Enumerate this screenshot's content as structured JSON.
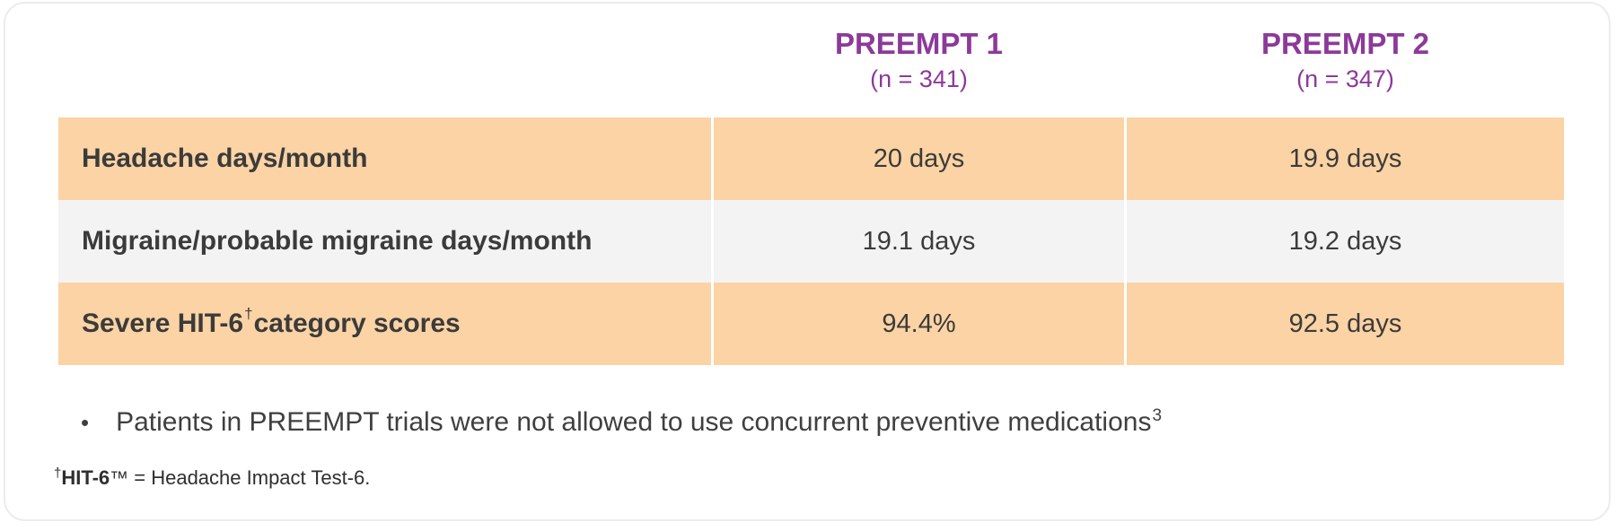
{
  "colors": {
    "accent_purple": "#8c3a99",
    "row_orange": "#fbd3a4",
    "row_alt_gray": "#f3f3f3",
    "text_dark": "#3b3b3b",
    "card_border": "#ececec"
  },
  "header": {
    "columns": [
      {
        "title": "PREEMPT 1",
        "subtitle": "(n = 341)"
      },
      {
        "title": "PREEMPT 2",
        "subtitle": "(n = 347)"
      }
    ]
  },
  "table": {
    "rows": [
      {
        "label": "Headache days/month",
        "preempt1": "20 days",
        "preempt2": "19.9 days"
      },
      {
        "label": "Migraine/probable migraine days/month",
        "preempt1": "19.1 days",
        "preempt2": "19.2 days"
      },
      {
        "label_prefix": "Severe HIT-6",
        "label_sup": "†",
        "label_suffix": " category scores",
        "preempt1": "94.4%",
        "preempt2": "92.5 days"
      }
    ]
  },
  "bullet": {
    "marker": "•",
    "text": "Patients in PREEMPT trials were not allowed to use concurrent preventive medications",
    "sup": "3"
  },
  "footnote": {
    "sup": "†",
    "term_bold": "HIT-6",
    "trademark": "™",
    "rest": " = Headache Impact Test-6."
  },
  "chart_data": {
    "type": "table",
    "columns": [
      "",
      "PREEMPT 1 (n = 341)",
      "PREEMPT 2 (n = 347)"
    ],
    "rows": [
      [
        "Headache days/month",
        "20 days",
        "19.9 days"
      ],
      [
        "Migraine/probable migraine days/month",
        "19.1 days",
        "19.2 days"
      ],
      [
        "Severe HIT-6† category scores",
        "94.4%",
        "92.5 days"
      ]
    ]
  }
}
